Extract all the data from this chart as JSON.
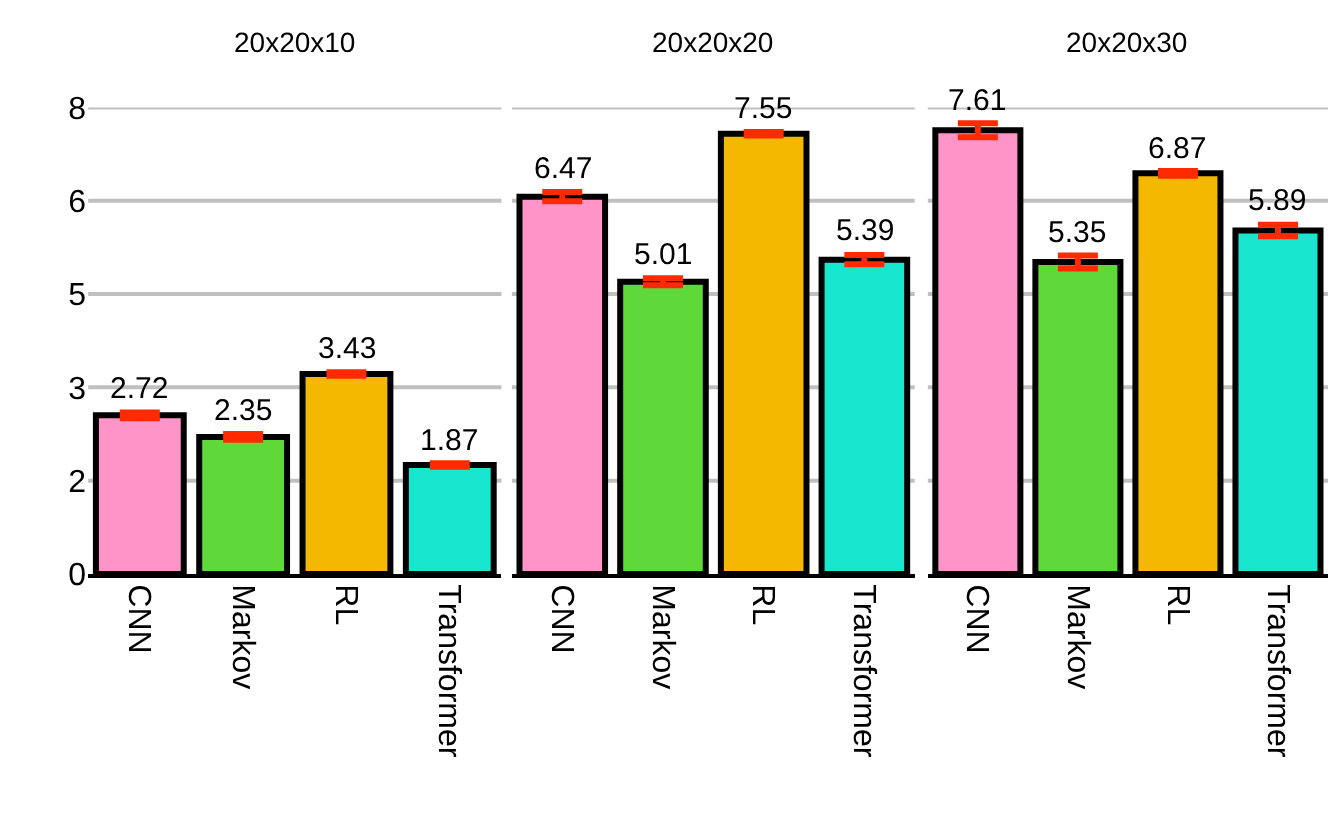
{
  "chart_data": [
    {
      "type": "bar",
      "title": "20x20x10",
      "categories": [
        "CNN",
        "Markov",
        "RL",
        "Transformer"
      ],
      "values": [
        2.72,
        2.35,
        3.43,
        1.87
      ],
      "colors": [
        "#ff94c8",
        "#5fd83a",
        "#f5b800",
        "#18e6cf"
      ],
      "errors": [
        0.05,
        0.05,
        0.03,
        0.03
      ],
      "data_labels": true,
      "ylim": [
        0,
        8
      ],
      "yticks": [
        0,
        {
          "value": 1.6,
          "label": "2"
        },
        {
          "value": 3.2,
          "label": "3"
        },
        {
          "value": 4.8,
          "label": "5"
        },
        {
          "value": 6.4,
          "label": "6"
        },
        8
      ],
      "grid": "y"
    },
    {
      "type": "bar",
      "title": "20x20x20",
      "categories": [
        "CNN",
        "Markov",
        "RL",
        "Transformer"
      ],
      "values": [
        6.47,
        5.01,
        7.55,
        5.39
      ],
      "colors": [
        "#ff94c8",
        "#5fd83a",
        "#f5b800",
        "#18e6cf"
      ],
      "errors": [
        0.08,
        0.06,
        0.03,
        0.08
      ],
      "data_labels": true,
      "ylim": [
        0,
        8
      ],
      "yticks": [
        0,
        {
          "value": 1.6,
          "label": null
        },
        {
          "value": 3.2,
          "label": null
        },
        {
          "value": 4.8,
          "label": null
        },
        {
          "value": 6.4,
          "label": null
        },
        8
      ],
      "grid": "y",
      "tick_labels": "x"
    },
    {
      "type": "bar",
      "title": "20x20x30",
      "categories": [
        "CNN",
        "Markov",
        "RL",
        "Transformer"
      ],
      "values": [
        7.61,
        5.35,
        6.87,
        5.89
      ],
      "colors": [
        "#ff94c8",
        "#5fd83a",
        "#f5b800",
        "#18e6cf"
      ],
      "errors": [
        0.12,
        0.11,
        0.04,
        0.1
      ],
      "data_labels": true,
      "ylim": [
        0,
        8
      ],
      "yticks": [
        0,
        {
          "value": 1.6,
          "label": null
        },
        {
          "value": 3.2,
          "label": null
        },
        {
          "value": 4.8,
          "label": null
        },
        {
          "value": 6.4,
          "label": null
        },
        8
      ],
      "grid": "y",
      "tick_labels": "x"
    }
  ]
}
